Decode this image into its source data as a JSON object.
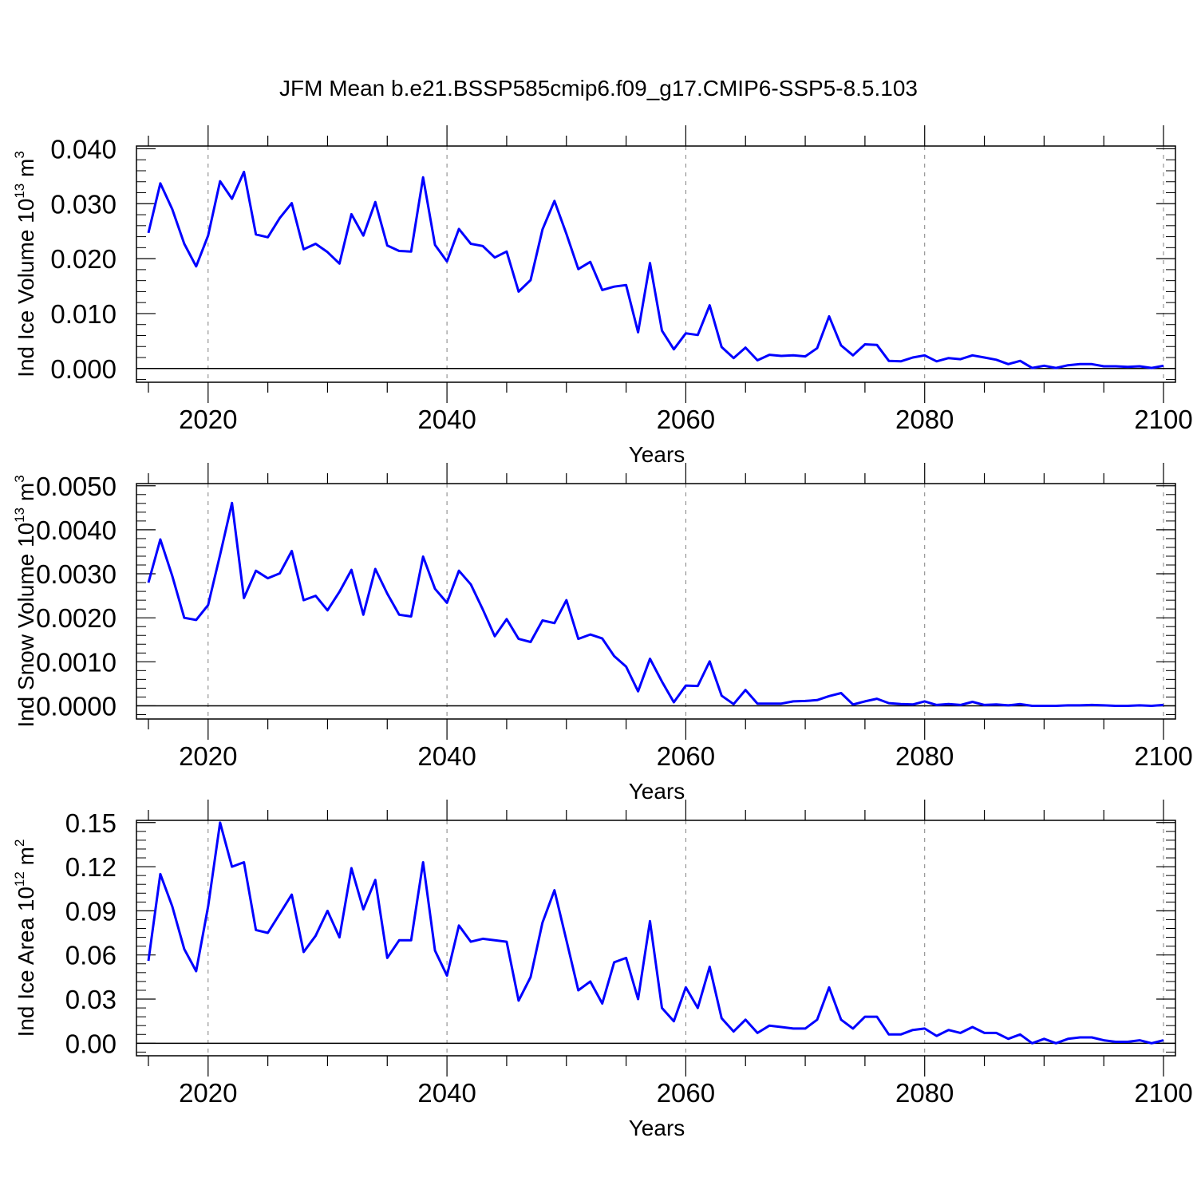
{
  "title": "JFM Mean b.e21.BSSP585cmip6.f09_g17.CMIP6-SSP5-8.5.103",
  "colors": {
    "line": "#0000ff",
    "axis": "#000000",
    "grid": "#808080"
  },
  "chart_data": [
    {
      "type": "line",
      "xlabel": "Years",
      "ylabel": {
        "main": "Ind Ice Volume 10",
        "sup1": "13",
        "mid": " m",
        "sup2": "3"
      },
      "xlim": [
        2014,
        2101
      ],
      "ylim": [
        -0.0025,
        0.0405
      ],
      "x_ticks": [
        2020,
        2040,
        2060,
        2080,
        2100
      ],
      "x_tick_labels": [
        "2020",
        "2040",
        "2060",
        "2080",
        "2100"
      ],
      "y_ticks": [
        0.0,
        0.01,
        0.02,
        0.03,
        0.04
      ],
      "y_tick_labels": [
        "0.000",
        "0.010",
        "0.020",
        "0.030",
        "0.040"
      ],
      "y_zero_line": true,
      "grid": "vertical dashed at major x ticks",
      "x": [
        2015,
        2016,
        2017,
        2018,
        2019,
        2020,
        2021,
        2022,
        2023,
        2024,
        2025,
        2026,
        2027,
        2028,
        2029,
        2030,
        2031,
        2032,
        2033,
        2034,
        2035,
        2036,
        2037,
        2038,
        2039,
        2040,
        2041,
        2042,
        2043,
        2044,
        2045,
        2046,
        2047,
        2048,
        2049,
        2050,
        2051,
        2052,
        2053,
        2054,
        2055,
        2056,
        2057,
        2058,
        2059,
        2060,
        2061,
        2062,
        2063,
        2064,
        2065,
        2066,
        2067,
        2068,
        2069,
        2070,
        2071,
        2072,
        2073,
        2074,
        2075,
        2076,
        2077,
        2078,
        2079,
        2080,
        2081,
        2082,
        2083,
        2084,
        2085,
        2086,
        2087,
        2088,
        2089,
        2090,
        2091,
        2092,
        2093,
        2094,
        2095,
        2096,
        2097,
        2098,
        2099,
        2100
      ],
      "values": [
        0.0247,
        0.0337,
        0.029,
        0.0227,
        0.0186,
        0.0242,
        0.0341,
        0.0309,
        0.0358,
        0.0244,
        0.0239,
        0.0274,
        0.0301,
        0.0217,
        0.0227,
        0.0212,
        0.0191,
        0.0281,
        0.0242,
        0.0303,
        0.0224,
        0.0214,
        0.0213,
        0.0348,
        0.0225,
        0.0195,
        0.0254,
        0.0227,
        0.0223,
        0.0202,
        0.0213,
        0.014,
        0.0161,
        0.0253,
        0.0305,
        0.0245,
        0.0181,
        0.0194,
        0.0143,
        0.0149,
        0.0152,
        0.0066,
        0.0192,
        0.0069,
        0.0035,
        0.0064,
        0.0061,
        0.0115,
        0.0039,
        0.0019,
        0.0038,
        0.0015,
        0.0025,
        0.0023,
        0.0024,
        0.0022,
        0.0037,
        0.0095,
        0.0042,
        0.0024,
        0.0044,
        0.0043,
        0.0014,
        0.0013,
        0.002,
        0.0024,
        0.0013,
        0.0019,
        0.0017,
        0.0024,
        0.002,
        0.0016,
        0.0008,
        0.0014,
        0.0001,
        0.0005,
        0.0001,
        0.0006,
        0.0008,
        0.0008,
        0.0004,
        0.0004,
        0.0003,
        0.0004,
        0.0001,
        0.0005
      ]
    },
    {
      "type": "line",
      "xlabel": "Years",
      "ylabel": {
        "main": "Ind Snow Volume 10",
        "sup1": "13",
        "mid": " m",
        "sup2": "3"
      },
      "xlim": [
        2014,
        2101
      ],
      "ylim": [
        -0.0003,
        0.00505
      ],
      "x_ticks": [
        2020,
        2040,
        2060,
        2080,
        2100
      ],
      "x_tick_labels": [
        "2020",
        "2040",
        "2060",
        "2080",
        "2100"
      ],
      "y_ticks": [
        0.0,
        0.001,
        0.002,
        0.003,
        0.004,
        0.005
      ],
      "y_tick_labels": [
        "0.0000",
        "0.0010",
        "0.0020",
        "0.0030",
        "0.0040",
        "0.0050"
      ],
      "y_zero_line": true,
      "grid": "vertical dashed at major x ticks",
      "x": [
        2015,
        2016,
        2017,
        2018,
        2019,
        2020,
        2021,
        2022,
        2023,
        2024,
        2025,
        2026,
        2027,
        2028,
        2029,
        2030,
        2031,
        2032,
        2033,
        2034,
        2035,
        2036,
        2037,
        2038,
        2039,
        2040,
        2041,
        2042,
        2043,
        2044,
        2045,
        2046,
        2047,
        2048,
        2049,
        2050,
        2051,
        2052,
        2053,
        2054,
        2055,
        2056,
        2057,
        2058,
        2059,
        2060,
        2061,
        2062,
        2063,
        2064,
        2065,
        2066,
        2067,
        2068,
        2069,
        2070,
        2071,
        2072,
        2073,
        2074,
        2075,
        2076,
        2077,
        2078,
        2079,
        2080,
        2081,
        2082,
        2083,
        2084,
        2085,
        2086,
        2087,
        2088,
        2089,
        2090,
        2091,
        2092,
        2093,
        2094,
        2095,
        2096,
        2097,
        2098,
        2099,
        2100
      ],
      "values": [
        0.0028,
        0.00378,
        0.00295,
        0.002,
        0.00195,
        0.00229,
        0.00343,
        0.00461,
        0.00245,
        0.00307,
        0.0029,
        0.00301,
        0.00352,
        0.0024,
        0.0025,
        0.00217,
        0.00259,
        0.00309,
        0.00207,
        0.00311,
        0.00255,
        0.00207,
        0.00203,
        0.00339,
        0.00266,
        0.00234,
        0.00307,
        0.00276,
        0.00219,
        0.00158,
        0.00197,
        0.00152,
        0.00145,
        0.00194,
        0.00188,
        0.0024,
        0.00152,
        0.00162,
        0.00153,
        0.00113,
        0.00089,
        0.00033,
        0.00107,
        0.00055,
        8e-05,
        0.00046,
        0.00045,
        0.00101,
        0.00023,
        4e-05,
        0.00036,
        5e-05,
        5e-05,
        5e-05,
        0.0001,
        0.00011,
        0.00013,
        0.00022,
        0.00029,
        3e-05,
        0.0001,
        0.00016,
        6e-05,
        4e-05,
        3e-05,
        0.0001,
        2e-05,
        4e-05,
        2e-05,
        9e-05,
        2e-05,
        3e-05,
        1e-05,
        4e-05,
        0.0,
        0.0,
        0.0,
        1e-05,
        1e-05,
        2e-05,
        1e-05,
        0.0,
        0.0,
        1e-05,
        0.0,
        2e-05
      ]
    },
    {
      "type": "line",
      "xlabel": "Years",
      "ylabel": {
        "main": "Ind Ice Area 10",
        "sup1": "12",
        "mid": " m",
        "sup2": "2"
      },
      "xlim": [
        2014,
        2101
      ],
      "ylim": [
        -0.0085,
        0.1515
      ],
      "x_ticks": [
        2020,
        2040,
        2060,
        2080,
        2100
      ],
      "x_tick_labels": [
        "2020",
        "2040",
        "2060",
        "2080",
        "2100"
      ],
      "y_ticks": [
        0.0,
        0.03,
        0.06,
        0.09,
        0.12,
        0.15
      ],
      "y_tick_labels": [
        "0.00",
        "0.03",
        "0.06",
        "0.09",
        "0.12",
        "0.15"
      ],
      "y_zero_line": true,
      "grid": "vertical dashed at major x ticks",
      "x": [
        2015,
        2016,
        2017,
        2018,
        2019,
        2020,
        2021,
        2022,
        2023,
        2024,
        2025,
        2026,
        2027,
        2028,
        2029,
        2030,
        2031,
        2032,
        2033,
        2034,
        2035,
        2036,
        2037,
        2038,
        2039,
        2040,
        2041,
        2042,
        2043,
        2044,
        2045,
        2046,
        2047,
        2048,
        2049,
        2050,
        2051,
        2052,
        2053,
        2054,
        2055,
        2056,
        2057,
        2058,
        2059,
        2060,
        2061,
        2062,
        2063,
        2064,
        2065,
        2066,
        2067,
        2068,
        2069,
        2070,
        2071,
        2072,
        2073,
        2074,
        2075,
        2076,
        2077,
        2078,
        2079,
        2080,
        2081,
        2082,
        2083,
        2084,
        2085,
        2086,
        2087,
        2088,
        2089,
        2090,
        2091,
        2092,
        2093,
        2094,
        2095,
        2096,
        2097,
        2098,
        2099,
        2100
      ],
      "values": [
        0.056,
        0.115,
        0.093,
        0.064,
        0.049,
        0.093,
        0.15,
        0.12,
        0.123,
        0.077,
        0.075,
        0.088,
        0.101,
        0.062,
        0.073,
        0.09,
        0.072,
        0.119,
        0.091,
        0.111,
        0.058,
        0.07,
        0.07,
        0.123,
        0.063,
        0.046,
        0.08,
        0.069,
        0.071,
        0.07,
        0.069,
        0.029,
        0.045,
        0.082,
        0.104,
        0.07,
        0.036,
        0.042,
        0.027,
        0.055,
        0.058,
        0.03,
        0.083,
        0.024,
        0.015,
        0.038,
        0.024,
        0.052,
        0.017,
        0.008,
        0.016,
        0.007,
        0.012,
        0.011,
        0.01,
        0.01,
        0.016,
        0.038,
        0.016,
        0.01,
        0.018,
        0.018,
        0.006,
        0.006,
        0.009,
        0.01,
        0.005,
        0.009,
        0.007,
        0.011,
        0.007,
        0.007,
        0.003,
        0.006,
        0.0,
        0.003,
        0.0,
        0.003,
        0.004,
        0.004,
        0.002,
        0.001,
        0.001,
        0.002,
        0.0,
        0.002
      ]
    }
  ]
}
